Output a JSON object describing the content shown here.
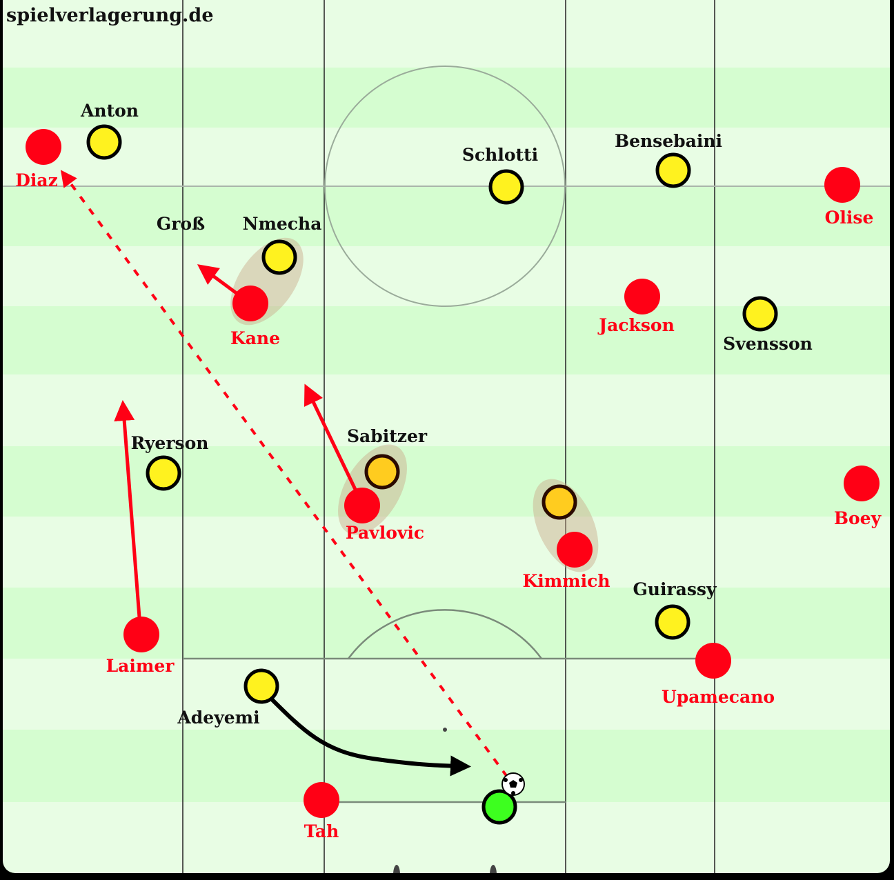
{
  "watermark": "spielverlagerung.de",
  "colors": {
    "pitch_light": "#e8fde4",
    "pitch_dark": "#d5fdd0",
    "red_team": "#ff0015",
    "yellow_team": "#fff21f",
    "highlighted_yellow": "#ffcc1f",
    "goalkeeper": "#3dff1f",
    "pressing_shadow": "#c9a88a"
  },
  "red_team": [
    "Diaz",
    "Olise",
    "Kane",
    "Jackson",
    "Pavlovic",
    "Kimmich",
    "Boey",
    "Laimer",
    "Upamecano",
    "Tah"
  ],
  "yellow_team": [
    "Anton",
    "Schlotti",
    "Bensebaini",
    "Nmecha",
    "Svensson",
    "Ryerson",
    "Sabitzer",
    "Guirassy",
    "Adeyemi",
    "Groß"
  ],
  "icons": {
    "ball": "soccer-ball-icon"
  }
}
